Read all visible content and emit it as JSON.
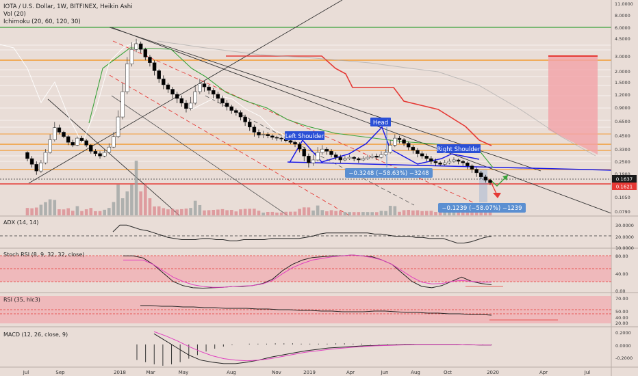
{
  "header": {
    "symbol": "IOTA / U.S. Dollar, 1W, BITFINEX, Heikin Ashi",
    "vol": "Vol (20)",
    "ichimoku": "Ichimoku (20, 60, 120, 30)"
  },
  "panes": {
    "adx": "ADX (14, 14)",
    "stoch": "Stoch RSI (8, 9, 32, 32, close)",
    "rsi": "RSI (35, hlc3)",
    "macd": "MACD (12, 26, close, 9)"
  },
  "annotations": {
    "left_shoulder": "Left Shoulder",
    "head": "Head",
    "right_shoulder": "Right Shoulder",
    "measure_1": "−0.3248 (−58.63%) −3248",
    "measure_2": "−0.1239 (−58.07%) −1239"
  },
  "colors": {
    "background": "#e9ddd7",
    "candle_up": "#ffffff",
    "candle_down": "#000000",
    "resistance_red": "#e53935",
    "support_orange": "#f39c34",
    "green_line": "#3aa33a",
    "pattern_blue": "#1a1ae6",
    "label_blue": "#2a4fd6",
    "measure_blue": "#5b8fd1",
    "zone_pink": "#f3a2a8"
  },
  "chart_data": [
    {
      "type": "candlestick",
      "title": "IOTA / U.S. Dollar, 1W, BITFINEX, Heikin Ashi",
      "xlabel": "",
      "ylabel": "",
      "x_ticks": [
        "Jul",
        "Sep",
        "2018",
        "Mar",
        "May",
        "Aug",
        "Nov",
        "2019",
        "Apr",
        "Jun",
        "Aug",
        "Oct",
        "2020",
        "Apr",
        "Jul"
      ],
      "y_ticks": [
        "11.0000",
        "8.0000",
        "6.0000",
        "4.5000",
        "3.0000",
        "2.0000",
        "1.5000",
        "1.2000",
        "0.9000",
        "0.6500",
        "0.4500",
        "0.3300",
        "0.2500",
        "0.1900",
        "0.1050",
        "0.0790"
      ],
      "price_labels": [
        "0.1637",
        "0.1621"
      ],
      "log_scale": true,
      "grid": false,
      "last_price": 0.1637,
      "candles": [
        [
          0.35,
          0.3,
          0.28,
          0.36
        ],
        [
          0.3,
          0.26,
          0.24,
          0.32
        ],
        [
          0.26,
          0.22,
          0.2,
          0.28
        ],
        [
          0.22,
          0.27,
          0.21,
          0.29
        ],
        [
          0.27,
          0.35,
          0.26,
          0.38
        ],
        [
          0.35,
          0.48,
          0.34,
          0.55
        ],
        [
          0.48,
          0.65,
          0.46,
          0.75
        ],
        [
          0.65,
          0.58,
          0.55,
          0.7
        ],
        [
          0.58,
          0.52,
          0.5,
          0.6
        ],
        [
          0.52,
          0.45,
          0.42,
          0.54
        ],
        [
          0.45,
          0.42,
          0.4,
          0.48
        ],
        [
          0.42,
          0.5,
          0.41,
          0.52
        ],
        [
          0.5,
          0.47,
          0.45,
          0.53
        ],
        [
          0.47,
          0.42,
          0.4,
          0.49
        ],
        [
          0.42,
          0.36,
          0.34,
          0.43
        ],
        [
          0.36,
          0.34,
          0.32,
          0.38
        ],
        [
          0.34,
          0.32,
          0.3,
          0.36
        ],
        [
          0.32,
          0.35,
          0.31,
          0.38
        ],
        [
          0.35,
          0.4,
          0.34,
          0.44
        ],
        [
          0.4,
          0.52,
          0.39,
          0.58
        ],
        [
          0.52,
          0.85,
          0.5,
          1.0
        ],
        [
          0.85,
          1.6,
          0.8,
          2.0
        ],
        [
          1.6,
          3.2,
          1.5,
          3.8
        ],
        [
          3.2,
          4.6,
          3.0,
          5.5
        ],
        [
          4.6,
          5.3,
          4.3,
          6.0
        ],
        [
          5.3,
          4.6,
          4.2,
          5.6
        ],
        [
          4.6,
          3.8,
          3.5,
          4.8
        ],
        [
          3.8,
          3.3,
          3.0,
          4.0
        ],
        [
          3.3,
          2.7,
          2.4,
          3.5
        ],
        [
          2.7,
          2.2,
          2.0,
          2.8
        ],
        [
          2.2,
          1.9,
          1.7,
          2.4
        ],
        [
          1.9,
          1.7,
          1.55,
          2.0
        ],
        [
          1.7,
          1.5,
          1.35,
          1.8
        ],
        [
          1.5,
          1.35,
          1.2,
          1.6
        ],
        [
          1.35,
          1.2,
          1.1,
          1.45
        ],
        [
          1.2,
          1.05,
          0.95,
          1.3
        ],
        [
          1.05,
          1.2,
          1.0,
          1.4
        ],
        [
          1.2,
          1.6,
          1.15,
          1.9
        ],
        [
          1.6,
          1.95,
          1.5,
          2.2
        ],
        [
          1.95,
          1.8,
          1.6,
          2.1
        ],
        [
          1.8,
          1.65,
          1.5,
          1.9
        ],
        [
          1.65,
          1.5,
          1.35,
          1.75
        ],
        [
          1.5,
          1.35,
          1.2,
          1.6
        ],
        [
          1.35,
          1.2,
          1.1,
          1.45
        ],
        [
          1.2,
          1.1,
          1.0,
          1.3
        ],
        [
          1.1,
          1.0,
          0.92,
          1.15
        ],
        [
          1.0,
          0.95,
          0.88,
          1.05
        ],
        [
          0.95,
          0.85,
          0.78,
          1.0
        ],
        [
          0.85,
          0.75,
          0.68,
          0.9
        ],
        [
          0.75,
          0.66,
          0.6,
          0.8
        ],
        [
          0.66,
          0.58,
          0.52,
          0.7
        ],
        [
          0.58,
          0.54,
          0.5,
          0.62
        ],
        [
          0.54,
          0.55,
          0.5,
          0.6
        ],
        [
          0.55,
          0.53,
          0.5,
          0.58
        ],
        [
          0.53,
          0.51,
          0.48,
          0.55
        ],
        [
          0.51,
          0.5,
          0.47,
          0.53
        ],
        [
          0.5,
          0.49,
          0.46,
          0.52
        ],
        [
          0.49,
          0.47,
          0.45,
          0.51
        ],
        [
          0.47,
          0.45,
          0.43,
          0.49
        ],
        [
          0.45,
          0.43,
          0.4,
          0.47
        ],
        [
          0.43,
          0.38,
          0.35,
          0.45
        ],
        [
          0.38,
          0.32,
          0.28,
          0.4
        ],
        [
          0.32,
          0.27,
          0.24,
          0.34
        ],
        [
          0.27,
          0.29,
          0.25,
          0.33
        ],
        [
          0.29,
          0.35,
          0.28,
          0.4
        ],
        [
          0.35,
          0.38,
          0.33,
          0.42
        ],
        [
          0.38,
          0.36,
          0.33,
          0.4
        ],
        [
          0.36,
          0.33,
          0.31,
          0.38
        ],
        [
          0.33,
          0.31,
          0.29,
          0.35
        ],
        [
          0.31,
          0.29,
          0.27,
          0.33
        ],
        [
          0.29,
          0.3,
          0.28,
          0.32
        ],
        [
          0.3,
          0.31,
          0.29,
          0.33
        ],
        [
          0.31,
          0.3,
          0.28,
          0.32
        ],
        [
          0.3,
          0.29,
          0.27,
          0.31
        ],
        [
          0.29,
          0.3,
          0.28,
          0.32
        ],
        [
          0.3,
          0.31,
          0.29,
          0.33
        ],
        [
          0.31,
          0.32,
          0.3,
          0.34
        ],
        [
          0.32,
          0.31,
          0.29,
          0.34
        ],
        [
          0.31,
          0.33,
          0.3,
          0.36
        ],
        [
          0.33,
          0.35,
          0.32,
          0.38
        ],
        [
          0.35,
          0.42,
          0.34,
          0.48
        ],
        [
          0.42,
          0.5,
          0.4,
          0.55
        ],
        [
          0.5,
          0.48,
          0.44,
          0.53
        ],
        [
          0.48,
          0.44,
          0.41,
          0.5
        ],
        [
          0.44,
          0.4,
          0.37,
          0.46
        ],
        [
          0.4,
          0.37,
          0.34,
          0.42
        ],
        [
          0.37,
          0.34,
          0.31,
          0.39
        ],
        [
          0.34,
          0.32,
          0.3,
          0.36
        ],
        [
          0.32,
          0.3,
          0.28,
          0.34
        ],
        [
          0.3,
          0.28,
          0.26,
          0.32
        ],
        [
          0.28,
          0.27,
          0.25,
          0.3
        ],
        [
          0.27,
          0.26,
          0.25,
          0.28
        ],
        [
          0.26,
          0.27,
          0.25,
          0.29
        ],
        [
          0.27,
          0.28,
          0.26,
          0.3
        ],
        [
          0.28,
          0.29,
          0.27,
          0.31
        ],
        [
          0.29,
          0.28,
          0.26,
          0.3
        ],
        [
          0.28,
          0.27,
          0.25,
          0.29
        ],
        [
          0.27,
          0.25,
          0.23,
          0.28
        ],
        [
          0.25,
          0.23,
          0.21,
          0.26
        ],
        [
          0.23,
          0.21,
          0.19,
          0.24
        ],
        [
          0.21,
          0.19,
          0.18,
          0.22
        ],
        [
          0.19,
          0.175,
          0.165,
          0.2
        ],
        [
          0.175,
          0.164,
          0.155,
          0.18
        ]
      ]
    },
    {
      "type": "line",
      "title": "ADX (14, 14)",
      "y_ticks": [
        "30.0000",
        "20.0000",
        "10.0000"
      ],
      "values": [
        24,
        30,
        30,
        28,
        26,
        25,
        23,
        21,
        19,
        18,
        17,
        17,
        17,
        18,
        18,
        17,
        17,
        16,
        16,
        17,
        17,
        17,
        17,
        18,
        18,
        18,
        18,
        18,
        19,
        20,
        22,
        23,
        23,
        23,
        23,
        23,
        23,
        23,
        22,
        22,
        21,
        20,
        20,
        20,
        19,
        19,
        18,
        18,
        18,
        16,
        14,
        14,
        15,
        17,
        19,
        20
      ]
    },
    {
      "type": "line",
      "title": "Stoch RSI (8, 9, 32, 32, close)",
      "y_ticks": [
        "80.00",
        "40.00",
        "0.00"
      ],
      "series": [
        {
          "values": [
            80,
            80,
            75,
            60,
            40,
            20,
            10,
            5,
            4,
            5,
            6,
            8,
            8,
            10,
            15,
            25,
            45,
            60,
            70,
            76,
            78,
            80,
            80,
            82,
            80,
            78,
            70,
            60,
            40,
            20,
            8,
            5,
            10,
            20,
            30,
            20,
            15,
            12
          ]
        },
        {
          "values": [
            70,
            70,
            70,
            60,
            45,
            30,
            20,
            12,
            8,
            6,
            6,
            8,
            9,
            10,
            14,
            22,
            38,
            52,
            62,
            70,
            74,
            78,
            80,
            82,
            80,
            76,
            70,
            60,
            45,
            30,
            18,
            14,
            15,
            20,
            22,
            20,
            18,
            18
          ]
        }
      ]
    },
    {
      "type": "line",
      "title": "RSI (35, hlc3)",
      "y_ticks": [
        "70.00",
        "50.00",
        "40.00",
        "20.00"
      ],
      "values": [
        56,
        56,
        55,
        55,
        54,
        54,
        53,
        53,
        52,
        52,
        52,
        51,
        51,
        50,
        50,
        49,
        49,
        48,
        48,
        47,
        47,
        47,
        48,
        48,
        47,
        46,
        46,
        45,
        45,
        44,
        44,
        43,
        43,
        42
      ]
    },
    {
      "type": "bar",
      "title": "MACD (12, 26, close, 9)",
      "y_ticks": [
        "0.2000",
        "0.0000",
        "-0.2000"
      ],
      "histogram": [
        -0.22,
        -0.25,
        -0.28,
        -0.3,
        -0.28,
        -0.25,
        -0.2,
        -0.15,
        -0.1,
        -0.06,
        -0.03,
        -0.01,
        0.0,
        0.01,
        0.01,
        0.01,
        0.015,
        0.015,
        0.015,
        0.01,
        0.01,
        0.01,
        0.01,
        0.015,
        0.015,
        0.01,
        0.01,
        0.005,
        0.005,
        0.005,
        0.005,
        0.005,
        0.005,
        0.0,
        0.0,
        0.0,
        0.0,
        -0.005,
        -0.005,
        -0.005,
        -0.005,
        -0.005
      ],
      "series": [
        {
          "values": [
            0.15,
            0.05,
            -0.05,
            -0.15,
            -0.22,
            -0.25,
            -0.27,
            -0.27,
            -0.25,
            -0.22,
            -0.18,
            -0.15,
            -0.12,
            -0.09,
            -0.07,
            -0.05,
            -0.04,
            -0.03,
            -0.02,
            -0.015,
            -0.01,
            -0.005,
            0.0,
            0.0,
            0.0,
            0.0,
            0.0,
            -0.005,
            -0.01,
            -0.01
          ]
        },
        {
          "values": [
            0.18,
            0.12,
            0.05,
            -0.03,
            -0.1,
            -0.16,
            -0.2,
            -0.22,
            -0.23,
            -0.22,
            -0.2,
            -0.17,
            -0.14,
            -0.11,
            -0.09,
            -0.07,
            -0.055,
            -0.04,
            -0.03,
            -0.02,
            -0.015,
            -0.01,
            -0.005,
            0.0,
            0.0,
            0.0,
            0.0,
            -0.005,
            -0.008,
            -0.01
          ]
        }
      ]
    }
  ]
}
